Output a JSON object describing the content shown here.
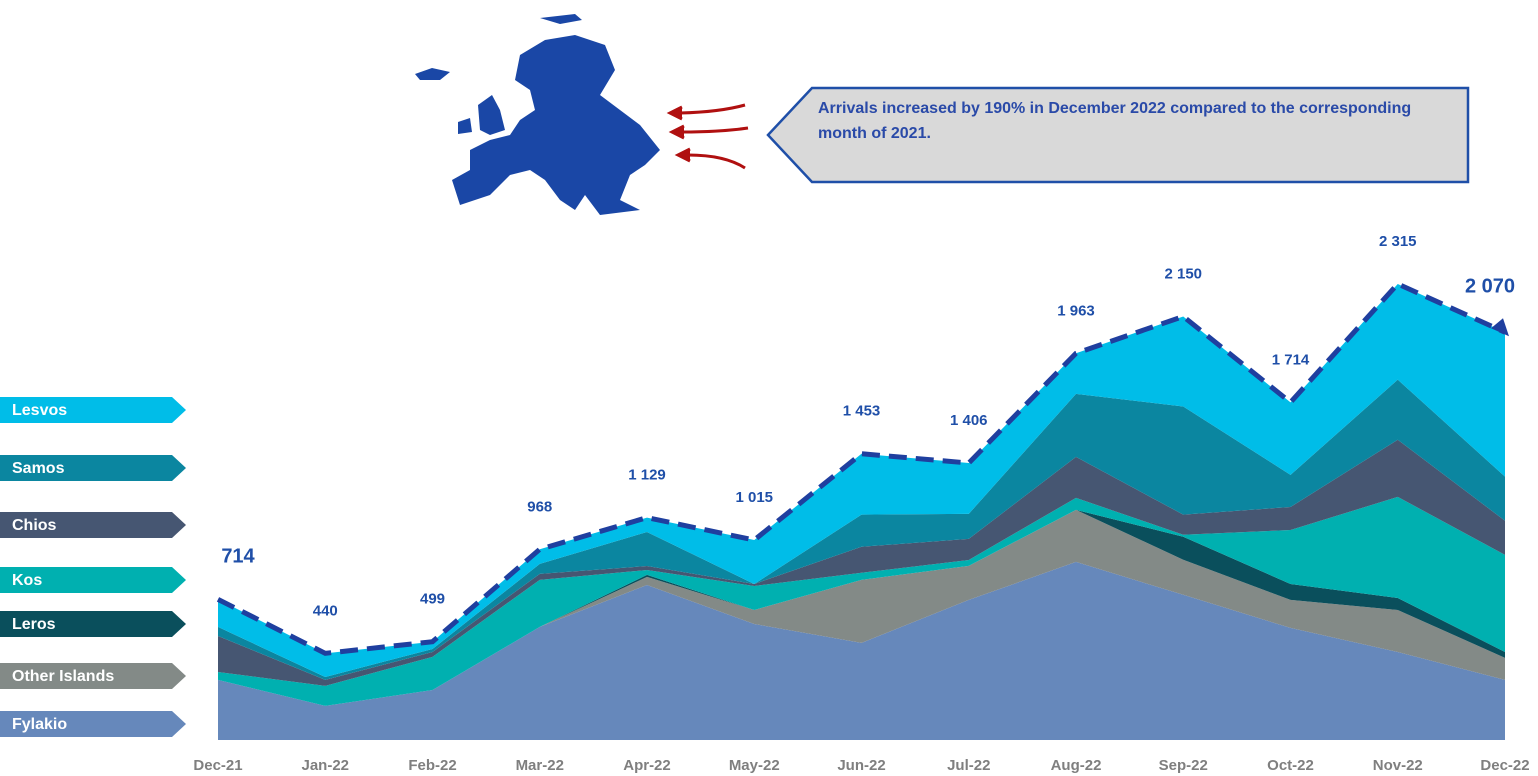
{
  "chart_data": {
    "type": "stacked-area",
    "annotation": "Arrivals increased by 190% in December 2022 compared to the corresponding month of 2021.",
    "categories": [
      "Dec-21",
      "Jan-22",
      "Feb-22",
      "Mar-22",
      "Apr-22",
      "May-22",
      "Jun-22",
      "Jul-22",
      "Aug-22",
      "Sep-22",
      "Oct-22",
      "Nov-22",
      "Dec-22"
    ],
    "series": [
      {
        "name": "Fylakio",
        "color": "#6688bb",
        "values": [
          305,
          173,
          254,
          574,
          787,
          589,
          493,
          711,
          904,
          737,
          569,
          447,
          305
        ]
      },
      {
        "name": "Other Islands",
        "color": "#838a87",
        "values": [
          0,
          0,
          0,
          0,
          41,
          71,
          320,
          173,
          264,
          178,
          142,
          213,
          112
        ]
      },
      {
        "name": "Leros",
        "color": "#0a4f5c",
        "values": [
          0,
          0,
          0,
          0,
          10,
          0,
          0,
          0,
          0,
          117,
          81,
          61,
          30
        ]
      },
      {
        "name": "Kos",
        "color": "#00b0b0",
        "values": [
          40,
          102,
          168,
          239,
          25,
          122,
          36,
          30,
          61,
          10,
          274,
          513,
          493
        ]
      },
      {
        "name": "Chios",
        "color": "#465672",
        "values": [
          183,
          30,
          25,
          30,
          20,
          10,
          132,
          107,
          208,
          102,
          117,
          290,
          173
        ]
      },
      {
        "name": "Samos",
        "color": "#0b86a0",
        "values": [
          46,
          15,
          15,
          51,
          173,
          0,
          163,
          127,
          320,
          549,
          163,
          305,
          224
        ]
      },
      {
        "name": "Lesvos",
        "color": "#00bde8",
        "values": [
          140,
          120,
          37,
          74,
          73,
          223,
          309,
          258,
          206,
          457,
          368,
          486,
          733
        ]
      }
    ],
    "totals": {
      "color": "#1f3f9f",
      "values": [
        714,
        440,
        499,
        968,
        1129,
        1015,
        1453,
        1406,
        1963,
        2150,
        1714,
        2315,
        2070
      ],
      "value_labels": [
        "714",
        "440",
        "499",
        "968",
        "1 129",
        "1 015",
        "1 453",
        "1 406",
        "1 963",
        "2 150",
        "1 714",
        "2 315",
        "2 070"
      ]
    }
  }
}
